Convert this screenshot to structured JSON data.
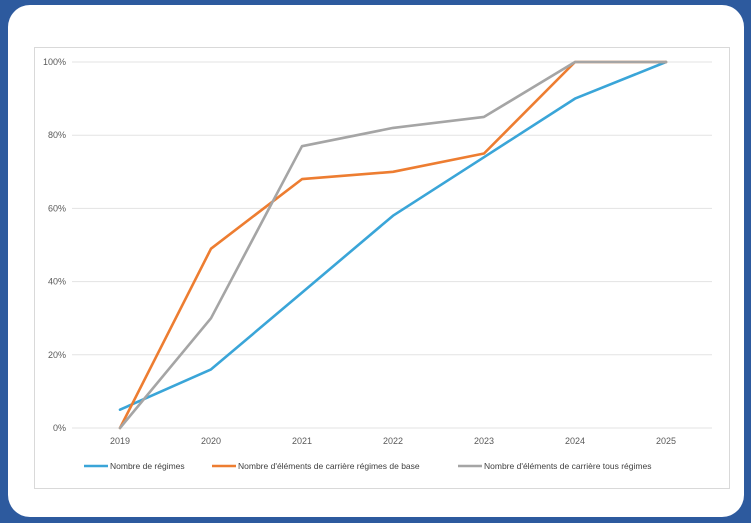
{
  "chart_data": {
    "type": "line",
    "title": "",
    "xlabel": "",
    "ylabel": "",
    "categories": [
      "2019",
      "2020",
      "2021",
      "2022",
      "2023",
      "2024",
      "2025"
    ],
    "y_ticks": [
      "0%",
      "20%",
      "40%",
      "60%",
      "80%",
      "100%"
    ],
    "ylim": [
      0,
      100
    ],
    "grid": "horizontal",
    "legend_position": "bottom",
    "series": [
      {
        "name": "Nombre de régimes",
        "color": "#3aa5d8",
        "values": [
          5,
          16,
          37,
          58,
          74,
          90,
          100
        ]
      },
      {
        "name": "Nombre d'éléments de carrière régimes de base",
        "color": "#ed7d31",
        "values": [
          0,
          49,
          68,
          70,
          75,
          100,
          100
        ]
      },
      {
        "name": "Nombre d'éléments de carrière tous régimes",
        "color": "#a5a5a5",
        "values": [
          0,
          30,
          77,
          82,
          85,
          100,
          100
        ]
      }
    ]
  }
}
